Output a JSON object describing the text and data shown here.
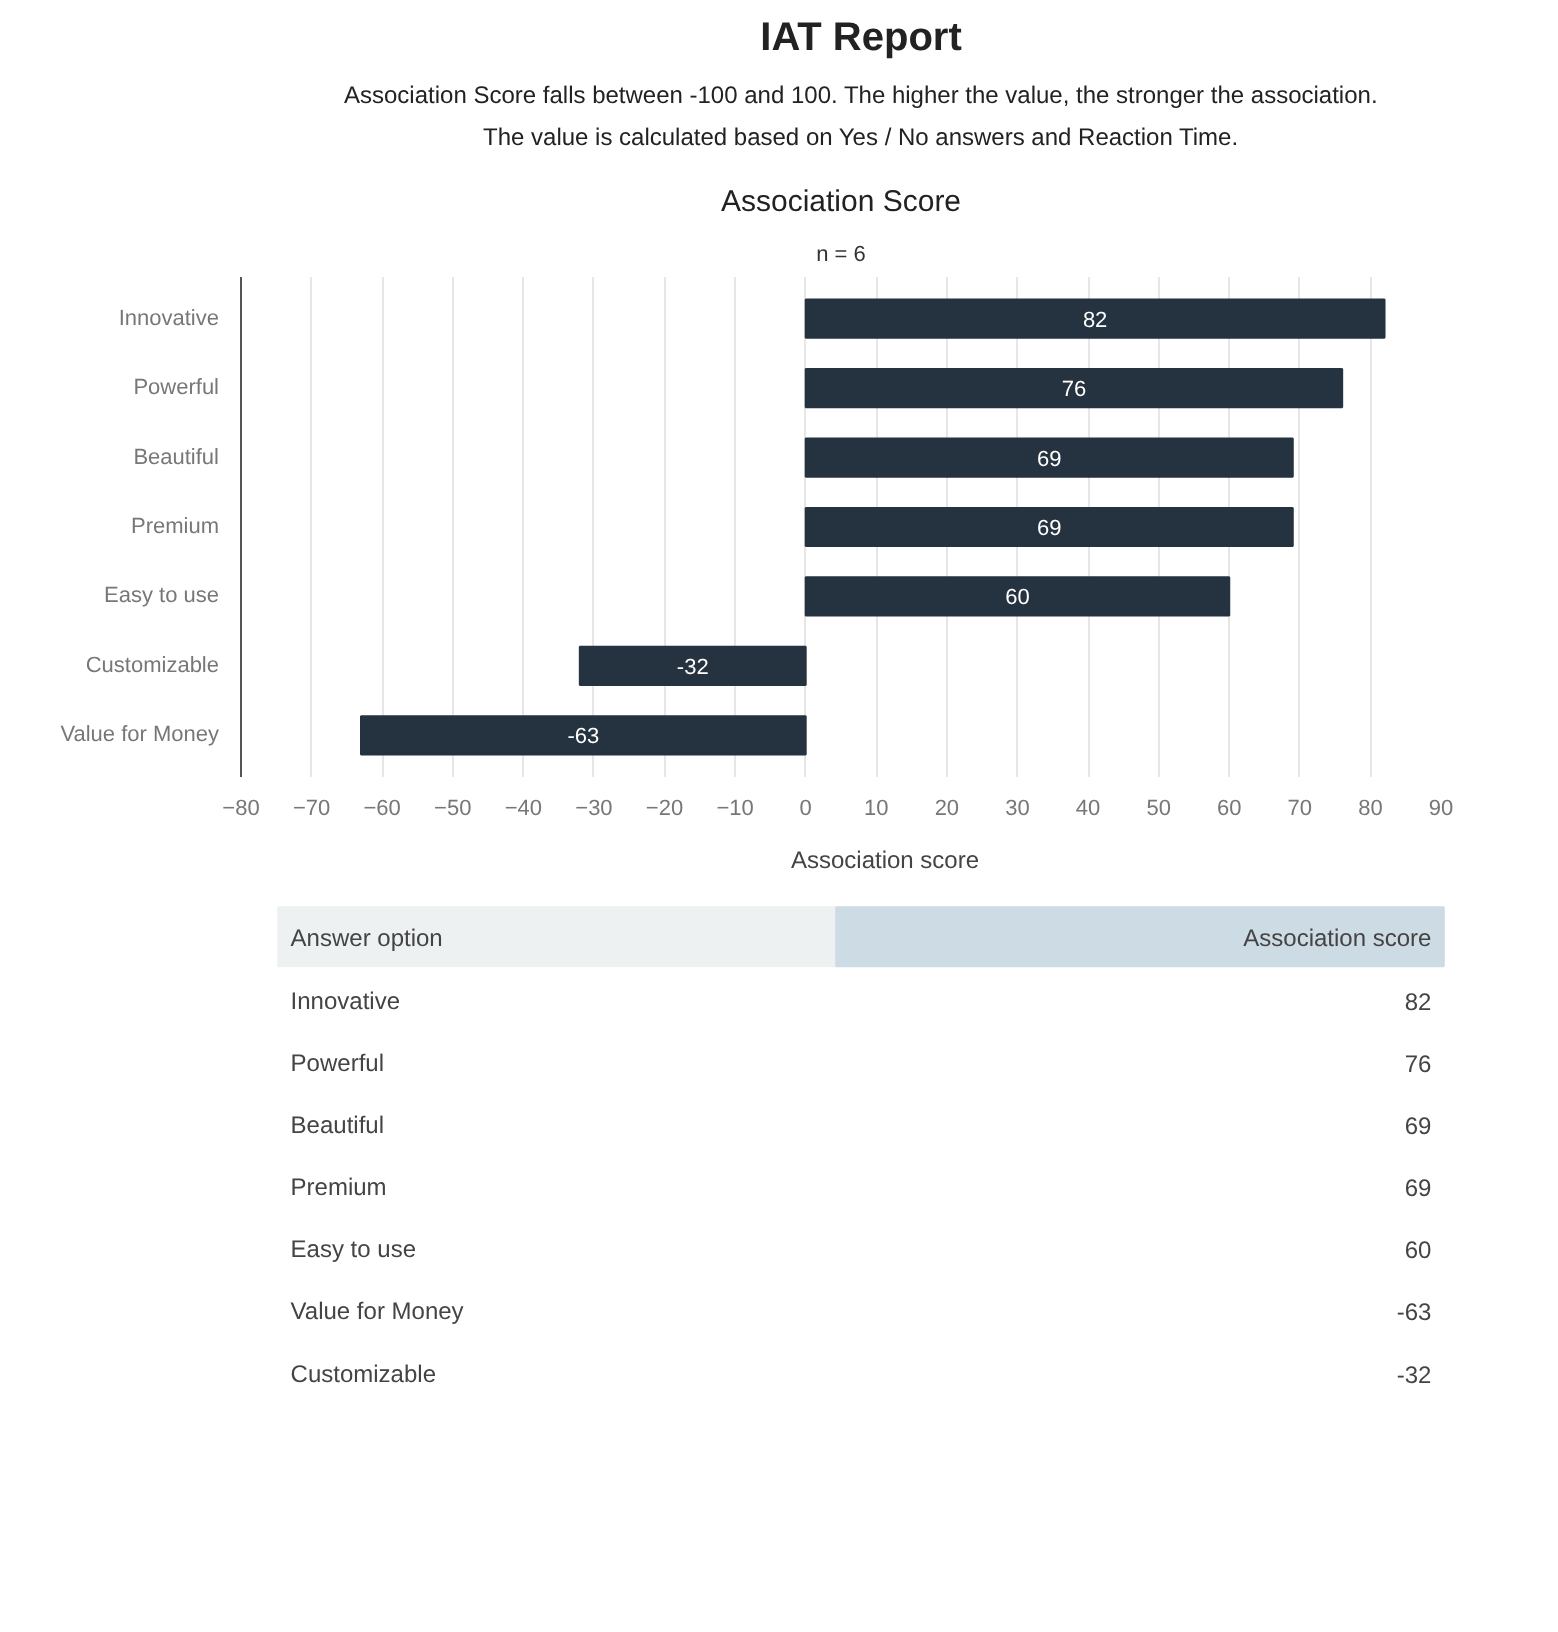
{
  "chart_data": [
    {
      "type": "other",
      "title": "IAT Report",
      "annotations": [
        "Association Score falls between -100 and 100. The higher the value, the stronger the association.",
        "The value is calculated based on Yes / No answers and Reaction Time."
      ]
    },
    {
      "type": "bar",
      "orientation": "horizontal",
      "title": "Association Score",
      "subtitle": "n = 6",
      "categories": [
        "Innovative",
        "Powerful",
        "Beautiful",
        "Premium",
        "Easy to use",
        "Customizable",
        "Value for Money"
      ],
      "series": [
        {
          "name": "Association score",
          "color": "#253341",
          "values": [
            82,
            76,
            69,
            69,
            60,
            -32,
            -63
          ]
        }
      ],
      "xlim": [
        -80,
        90
      ],
      "xticks": [
        -80,
        -70,
        -60,
        -50,
        -40,
        -30,
        -20,
        -10,
        0,
        10,
        20,
        30,
        40,
        50,
        60,
        70,
        80,
        90
      ],
      "grid": "x",
      "legend": "bottom",
      "data_labels": true
    },
    {
      "type": "other",
      "xlabel": "Answer option",
      "ylabel": "Association score",
      "categories": [
        "Innovative",
        "Powerful",
        "Beautiful",
        "Premium",
        "Easy to use",
        "Value for Money",
        "Customizable"
      ],
      "values": [
        82,
        76,
        69,
        69,
        60,
        -63,
        -32
      ],
      "data_labels": true
    }
  ]
}
